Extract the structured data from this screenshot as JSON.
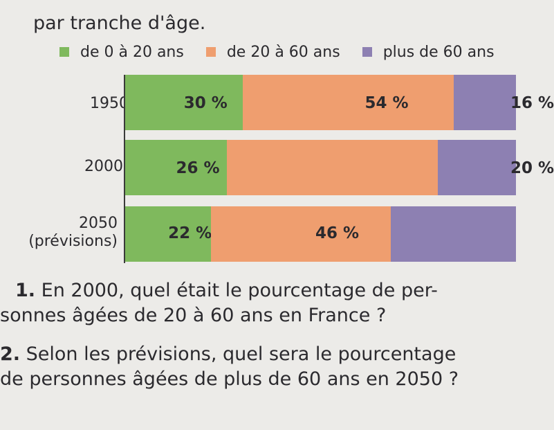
{
  "intro_text": "par tranche d'âge.",
  "colors": {
    "young": "#7fb95d",
    "middle": "#ef9e6f",
    "old": "#8d80b2"
  },
  "chart_data": {
    "type": "bar",
    "orientation": "horizontal",
    "stacked": true,
    "categories": [
      "1950",
      "2000",
      "2050\n(prévisions)"
    ],
    "category_lines": [
      [
        "1950"
      ],
      [
        "2000"
      ],
      [
        "2050",
        "(prévisions)"
      ]
    ],
    "series": [
      {
        "name": "de 0 à 20 ans",
        "values": [
          30,
          26,
          22
        ],
        "labels": [
          "30 %",
          "26 %",
          "22 %"
        ]
      },
      {
        "name": "de 20 à 60 ans",
        "values": [
          54,
          54,
          46
        ],
        "labels": [
          "54 %",
          "",
          "46 %"
        ]
      },
      {
        "name": "plus de 60 ans",
        "values": [
          16,
          20,
          32
        ],
        "labels": [
          "16 %",
          "20 %",
          ""
        ]
      }
    ],
    "xlim": [
      0,
      100
    ],
    "legend": "top"
  },
  "questions": [
    {
      "number": "1.",
      "lines": [
        "En 2000, quel était le pourcentage de per-",
        "sonnes âgées de 20 à 60 ans en France ?"
      ]
    },
    {
      "number": "2.",
      "lines": [
        "Selon les prévisions, quel sera le pourcentage",
        "de personnes âgées de plus de 60 ans en 2050 ?"
      ]
    }
  ]
}
